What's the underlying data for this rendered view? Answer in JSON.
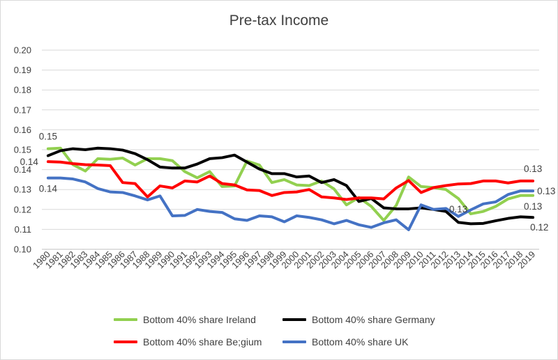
{
  "chart_data": {
    "type": "line",
    "title": "Pre-tax Income",
    "xlabel": "",
    "ylabel": "",
    "ylim": [
      0.1,
      0.2
    ],
    "yticks": [
      "0.10",
      "0.11",
      "0.12",
      "0.13",
      "0.14",
      "0.15",
      "0.16",
      "0.17",
      "0.18",
      "0.19",
      "0.20"
    ],
    "grid": true,
    "legend_position": "bottom",
    "x": [
      "1980",
      "1981",
      "1982",
      "1983",
      "1984",
      "1985",
      "1986",
      "1987",
      "1988",
      "1989",
      "1990",
      "1991",
      "1992",
      "1993",
      "1994",
      "1995",
      "1996",
      "1997",
      "1998",
      "1999",
      "2000",
      "2001",
      "2002",
      "2003",
      "2004",
      "2005",
      "2006",
      "2007",
      "2008",
      "2009",
      "2010",
      "2011",
      "2012",
      "2013",
      "2014",
      "2015",
      "2016",
      "2017",
      "2018",
      "2019"
    ],
    "series": [
      {
        "name": "Bottom 40% share Ireland",
        "color": "#92d050",
        "values": [
          0.1505,
          0.1508,
          0.1425,
          0.1393,
          0.1455,
          0.1452,
          0.1458,
          0.1423,
          0.1455,
          0.1455,
          0.1445,
          0.139,
          0.1359,
          0.139,
          0.1315,
          0.1318,
          0.1443,
          0.1423,
          0.1335,
          0.135,
          0.1323,
          0.132,
          0.1343,
          0.1303,
          0.1223,
          0.126,
          0.1215,
          0.1145,
          0.122,
          0.1363,
          0.1315,
          0.131,
          0.13,
          0.1255,
          0.1178,
          0.119,
          0.1215,
          0.1253,
          0.127,
          0.127
        ]
      },
      {
        "name": "Bottom 40% share Germany",
        "color": "#000000",
        "values": [
          0.147,
          0.1495,
          0.1505,
          0.15,
          0.1508,
          0.1505,
          0.1498,
          0.148,
          0.145,
          0.1413,
          0.1408,
          0.1408,
          0.1428,
          0.1455,
          0.146,
          0.1473,
          0.1438,
          0.1403,
          0.138,
          0.138,
          0.1363,
          0.1368,
          0.1335,
          0.135,
          0.132,
          0.124,
          0.1255,
          0.1208,
          0.1203,
          0.1203,
          0.1208,
          0.12,
          0.119,
          0.1135,
          0.1128,
          0.113,
          0.1143,
          0.1155,
          0.1163,
          0.116
        ]
      },
      {
        "name": "Bottom 40% share Be;gium",
        "color": "#ff0000",
        "values": [
          0.144,
          0.1438,
          0.143,
          0.1425,
          0.1423,
          0.142,
          0.1335,
          0.133,
          0.1263,
          0.1318,
          0.1308,
          0.1343,
          0.1338,
          0.1368,
          0.133,
          0.1323,
          0.1298,
          0.1295,
          0.127,
          0.1285,
          0.1288,
          0.13,
          0.1263,
          0.1258,
          0.125,
          0.1258,
          0.1258,
          0.1253,
          0.1308,
          0.1345,
          0.1285,
          0.131,
          0.132,
          0.1328,
          0.133,
          0.1343,
          0.1343,
          0.1333,
          0.1343,
          0.1343
        ]
      },
      {
        "name": "Bottom 40% share UK",
        "color": "#4472c4",
        "values": [
          0.1358,
          0.1358,
          0.1353,
          0.1338,
          0.1305,
          0.1288,
          0.1285,
          0.1268,
          0.1248,
          0.1268,
          0.1168,
          0.117,
          0.12,
          0.119,
          0.1185,
          0.1153,
          0.1145,
          0.1168,
          0.1163,
          0.1138,
          0.1168,
          0.116,
          0.1148,
          0.1128,
          0.1145,
          0.1123,
          0.111,
          0.1133,
          0.1148,
          0.1098,
          0.1223,
          0.12,
          0.1205,
          0.1165,
          0.1198,
          0.1228,
          0.1238,
          0.1275,
          0.1293,
          0.1293
        ]
      }
    ],
    "data_labels": [
      {
        "series": 0,
        "index": 0,
        "text": "0.15",
        "pos": "above"
      },
      {
        "series": 2,
        "index": 0,
        "text": "0.14",
        "pos": "left"
      },
      {
        "series": 3,
        "index": 0,
        "text": "0.14",
        "pos": "below"
      },
      {
        "series": 0,
        "index": 33,
        "text": "0.13",
        "pos": "below"
      },
      {
        "series": 2,
        "index": 39,
        "text": "0.13",
        "pos": "above"
      },
      {
        "series": 3,
        "index": 39,
        "text": "0.13",
        "pos": "right"
      },
      {
        "series": 0,
        "index": 39,
        "text": "0.13",
        "pos": "below"
      },
      {
        "series": 1,
        "index": 39,
        "text": "0.12",
        "pos": "belowright"
      }
    ]
  }
}
